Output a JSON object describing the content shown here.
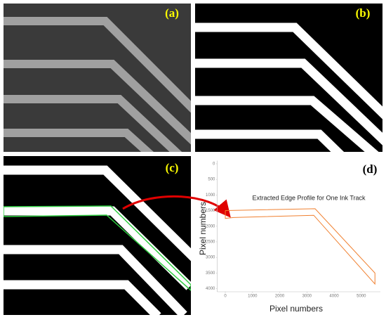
{
  "panel_labels": [
    "(a)",
    "(b)",
    "(c)",
    "(d)"
  ],
  "chart_data": {
    "type": "line",
    "title": "Extracted Edge Profile for One Ink Track",
    "xlabel": "Pixel numbers",
    "ylabel": "Pixel numbers",
    "x": [
      0,
      3300,
      5500,
      5500,
      3250,
      300,
      0,
      0
    ],
    "values": [
      1500,
      1440,
      3500,
      3850,
      1650,
      1720,
      1750,
      1500
    ],
    "color": "#f08030",
    "xlim": [
      -300,
      5700
    ],
    "xticks": [
      0,
      1000,
      2000,
      3000,
      4000,
      5000
    ],
    "ylim": [
      -100,
      4100
    ],
    "yticks": [
      0,
      500,
      1000,
      1500,
      2000,
      2500,
      3000,
      3500,
      4000
    ],
    "y_inverted": true
  }
}
